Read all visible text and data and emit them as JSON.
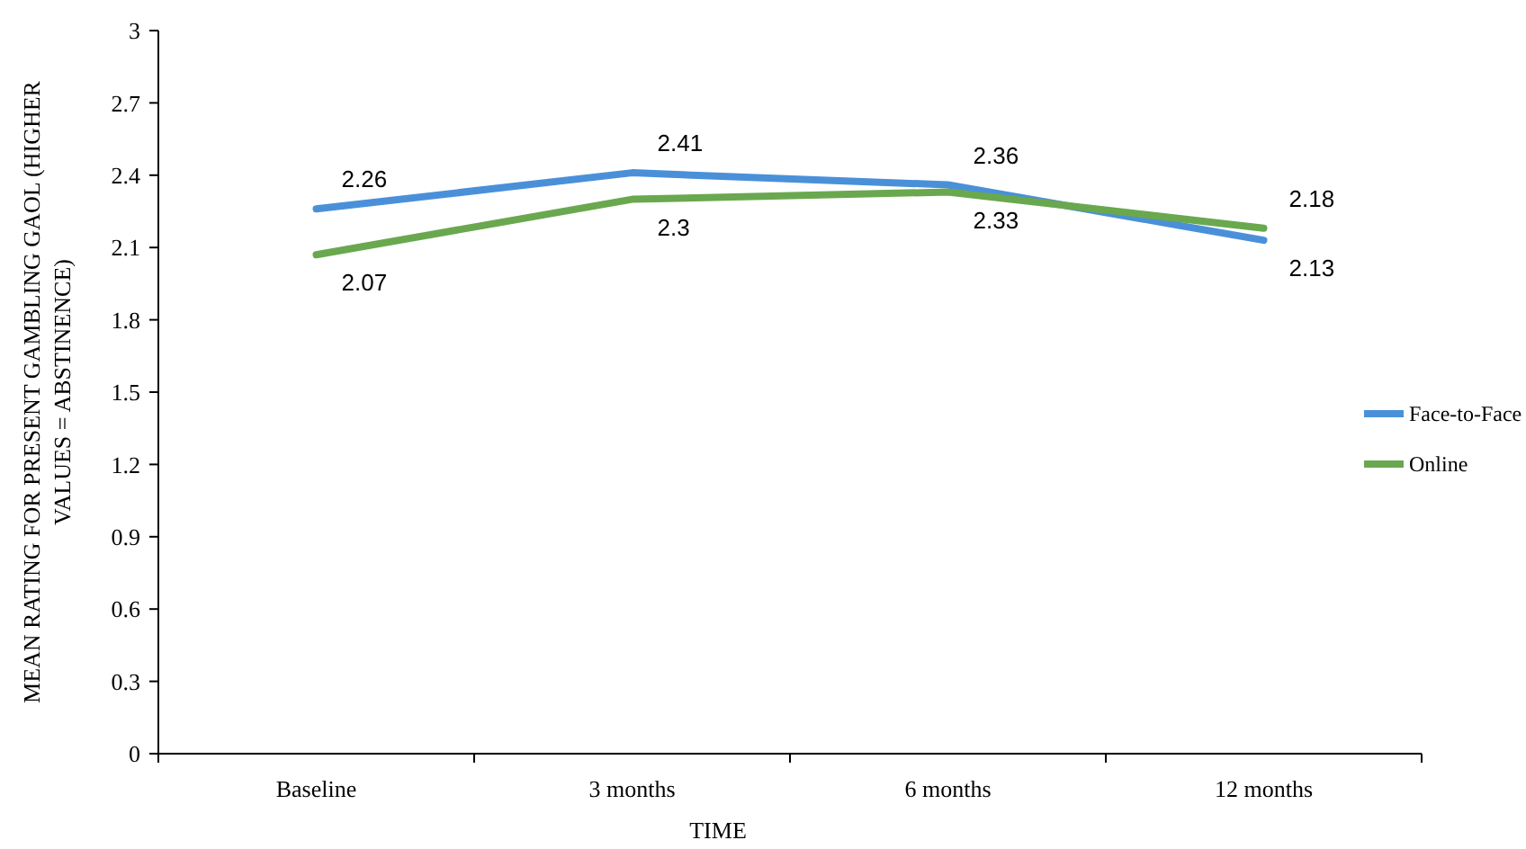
{
  "chart_data": {
    "type": "line",
    "xlabel": "TIME",
    "ylabel": "MEAN RATING FOR PRESENT GAMBLING GAOL (HIGHER VALUES = ABSTINENCE)",
    "categories": [
      "Baseline",
      "3 months",
      "6 months",
      "12 months"
    ],
    "series": [
      {
        "name": "Face-to-Face",
        "color": "#4a90d9",
        "values": [
          2.26,
          2.41,
          2.36,
          2.13
        ]
      },
      {
        "name": "Online",
        "color": "#6aa84f",
        "values": [
          2.07,
          2.3,
          2.33,
          2.18
        ]
      }
    ],
    "ylim": [
      0,
      3
    ],
    "yticks": [
      0,
      0.3,
      0.6,
      0.9,
      1.2,
      1.5,
      1.8,
      2.1,
      2.4,
      2.7,
      3
    ],
    "grid": false,
    "legend": "right",
    "marker": "none",
    "line_style": "solid",
    "data_labels": true
  }
}
